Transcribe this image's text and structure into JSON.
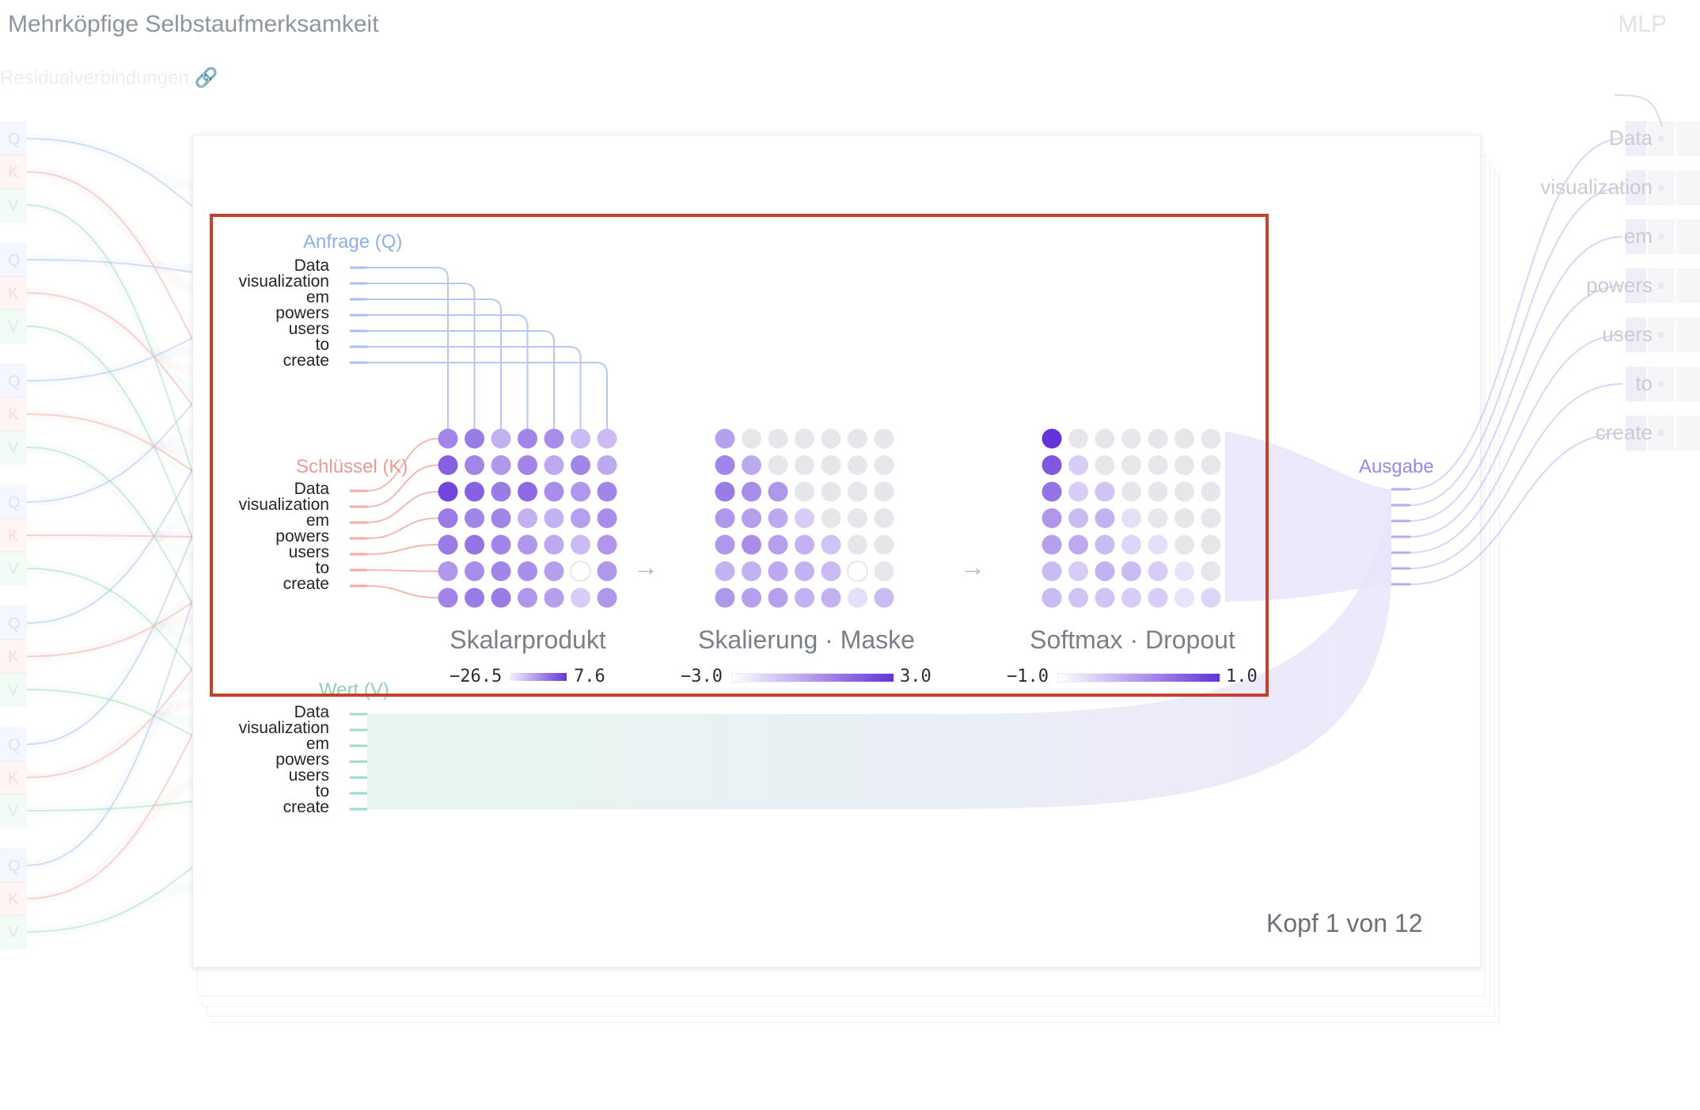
{
  "header": {
    "title": "Mehrköpfige Selbstaufmerksamkeit",
    "next_block": "MLP"
  },
  "residual": {
    "label": "Residualverbindungen 🔗"
  },
  "tokens": [
    "Data",
    "visualization",
    "em",
    "powers",
    "users",
    "to",
    "create"
  ],
  "groups": {
    "query": {
      "label": "Anfrage (Q)"
    },
    "key": {
      "label": "Schlüssel (K)"
    },
    "value": {
      "label": "Wert (V)"
    },
    "output": {
      "label": "Ausgabe"
    }
  },
  "stages": [
    {
      "title": "Skalarprodukt",
      "min": "−26.5",
      "max": "7.6"
    },
    {
      "title": "Skalierung · Maske",
      "min": "−3.0",
      "max": "3.0"
    },
    {
      "title": "Softmax · Dropout",
      "min": "−1.0",
      "max": "1.0"
    }
  ],
  "matrices": {
    "dot_product": [
      [
        0.55,
        0.6,
        0.3,
        0.55,
        0.5,
        0.25,
        0.25
      ],
      [
        0.75,
        0.55,
        0.45,
        0.55,
        0.35,
        0.55,
        0.35
      ],
      [
        0.9,
        0.75,
        0.6,
        0.7,
        0.5,
        0.45,
        0.55
      ],
      [
        0.6,
        0.55,
        0.55,
        0.3,
        0.3,
        0.4,
        0.5
      ],
      [
        0.6,
        0.65,
        0.55,
        0.45,
        0.35,
        0.25,
        0.45
      ],
      [
        0.45,
        0.5,
        0.55,
        0.5,
        0.4,
        0.0,
        0.45
      ],
      [
        0.55,
        0.6,
        0.6,
        0.45,
        0.4,
        0.15,
        0.45
      ]
    ],
    "scaled_masked": [
      [
        0.4,
        null,
        null,
        null,
        null,
        null,
        null
      ],
      [
        0.55,
        0.35,
        null,
        null,
        null,
        null,
        null
      ],
      [
        0.6,
        0.5,
        0.45,
        null,
        null,
        null,
        null
      ],
      [
        0.45,
        0.4,
        0.35,
        0.15,
        null,
        null,
        null
      ],
      [
        0.45,
        0.5,
        0.4,
        0.3,
        0.2,
        null,
        null
      ],
      [
        0.3,
        0.3,
        0.35,
        0.3,
        0.25,
        0.0,
        null
      ],
      [
        0.45,
        0.4,
        0.4,
        0.3,
        0.3,
        0.05,
        0.25
      ]
    ],
    "softmax": [
      [
        1.0,
        null,
        null,
        null,
        null,
        null,
        null
      ],
      [
        0.8,
        0.15,
        null,
        null,
        null,
        null,
        null
      ],
      [
        0.65,
        0.15,
        0.2,
        null,
        null,
        null,
        null
      ],
      [
        0.45,
        0.25,
        0.3,
        0.05,
        null,
        null,
        null
      ],
      [
        0.4,
        0.35,
        0.25,
        0.1,
        0.05,
        null,
        null
      ],
      [
        0.25,
        0.15,
        0.3,
        0.25,
        0.15,
        0.03,
        null
      ],
      [
        0.25,
        0.2,
        0.2,
        0.15,
        0.15,
        0.03,
        0.1
      ]
    ]
  },
  "colors": {
    "query": "#a8c1ec",
    "key": "#f3aaa5",
    "value": "#9fdcbd",
    "accent": "#6434d8",
    "empty_cell": "#e6e7ea",
    "output": "#b8a9f2"
  },
  "head_counter": "Kopf 1 von 12"
}
